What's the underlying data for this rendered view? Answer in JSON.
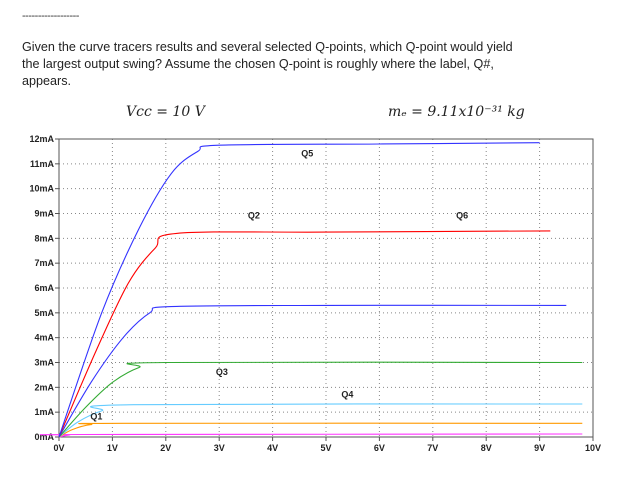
{
  "header": {
    "rule": "------------------",
    "question_lines": [
      "Given the curve tracers results and several selected Q-points, which Q-point would yield",
      "the largest output swing?  Assume the chosen Q-point is roughly where the label, Q#,",
      "appears."
    ],
    "equation_vcc": "Vₙₙ = 10 V",
    "equation_vcc_text": "Vcc = 10 V",
    "equation_me": "mₑ = 9.11x10⁻³¹ kg"
  },
  "chart_data": {
    "type": "line",
    "xlim": [
      0,
      10
    ],
    "ylim": [
      0,
      12
    ],
    "x_ticks": [
      "0V",
      "1V",
      "2V",
      "3V",
      "4V",
      "5V",
      "6V",
      "7V",
      "8V",
      "9V",
      "10V"
    ],
    "y_ticks": [
      "0mA",
      "1mA",
      "2mA",
      "3mA",
      "4mA",
      "5mA",
      "6mA",
      "7mA",
      "8mA",
      "9mA",
      "10mA",
      "11mA",
      "12mA"
    ],
    "grid": true,
    "series": [
      {
        "color": "#ff33ff",
        "values": [
          [
            0,
            0
          ],
          [
            0.2,
            0.08
          ],
          [
            0.4,
            0.1
          ],
          [
            9.8,
            0.12
          ]
        ]
      },
      {
        "color": "#ff9900",
        "values": [
          [
            0,
            0
          ],
          [
            0.25,
            0.3
          ],
          [
            0.6,
            0.5
          ],
          [
            1.2,
            0.55
          ],
          [
            9.8,
            0.55
          ]
        ]
      },
      {
        "color": "#66ccff",
        "values": [
          [
            0,
            0
          ],
          [
            0.35,
            0.6
          ],
          [
            0.8,
            1.05
          ],
          [
            1.4,
            1.3
          ],
          [
            9.8,
            1.33
          ]
        ]
      },
      {
        "color": "#33aa33",
        "values": [
          [
            0,
            0
          ],
          [
            0.5,
            1.2
          ],
          [
            1.0,
            2.2
          ],
          [
            1.5,
            2.8
          ],
          [
            2.0,
            3.0
          ],
          [
            9.8,
            3.0
          ]
        ]
      },
      {
        "color": "#3333ff",
        "values": [
          [
            0,
            0
          ],
          [
            0.6,
            2.2
          ],
          [
            1.2,
            4.0
          ],
          [
            1.7,
            5.0
          ],
          [
            2.1,
            5.25
          ],
          [
            5,
            5.3
          ],
          [
            9.5,
            5.3
          ]
        ]
      },
      {
        "color": "#ff0000",
        "values": [
          [
            0,
            0
          ],
          [
            0.7,
            3.5
          ],
          [
            1.3,
            6.2
          ],
          [
            1.8,
            7.6
          ],
          [
            2.2,
            8.2
          ],
          [
            5,
            8.25
          ],
          [
            9.2,
            8.3
          ]
        ]
      },
      {
        "color": "#3333ff",
        "values": [
          [
            0,
            0
          ],
          [
            0.8,
            5.0
          ],
          [
            1.5,
            8.4
          ],
          [
            2.1,
            10.6
          ],
          [
            2.6,
            11.5
          ],
          [
            3.0,
            11.75
          ],
          [
            6,
            11.8
          ],
          [
            9.0,
            11.85
          ]
        ]
      }
    ],
    "annotations": [
      {
        "label": "Q1",
        "x": 0.7,
        "y": 0.7
      },
      {
        "label": "Q2",
        "x": 3.65,
        "y": 8.8
      },
      {
        "label": "Q3",
        "x": 3.05,
        "y": 2.5
      },
      {
        "label": "Q4",
        "x": 5.4,
        "y": 1.6
      },
      {
        "label": "Q5",
        "x": 4.65,
        "y": 11.3
      },
      {
        "label": "Q6",
        "x": 7.55,
        "y": 8.8
      }
    ]
  }
}
